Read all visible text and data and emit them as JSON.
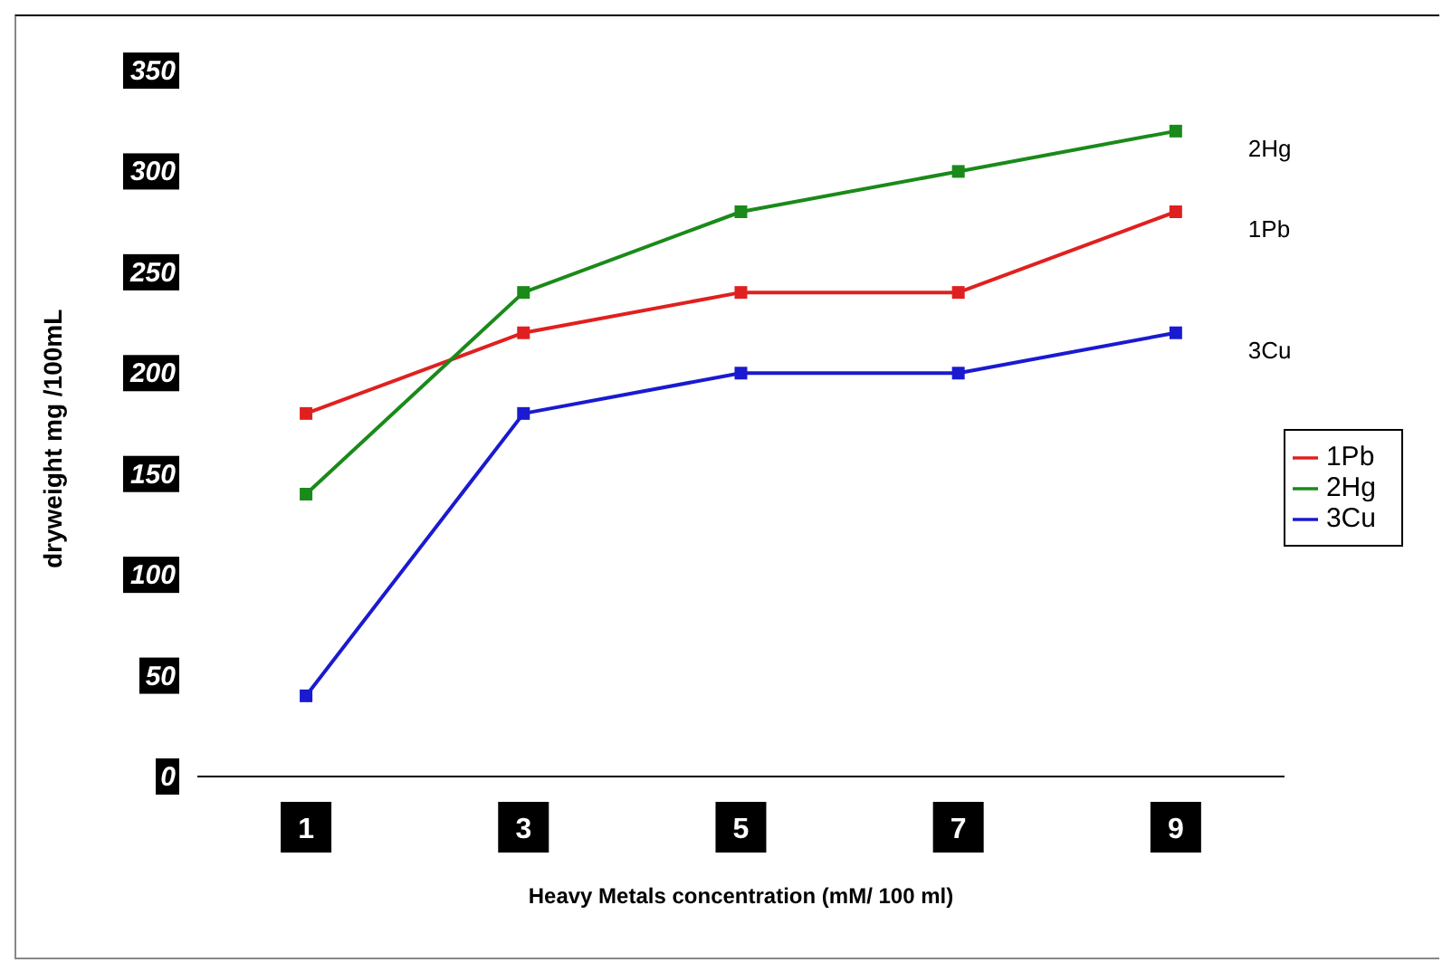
{
  "chart_data": {
    "type": "line",
    "xlabel": "Heavy Metals concentration (mM/ 100 ml)",
    "ylabel": "dryweight mg /100mL",
    "categories": [
      "1",
      "3",
      "5",
      "7",
      "9"
    ],
    "series": [
      {
        "name": "1Pb",
        "color": "#e02020",
        "values": [
          180,
          220,
          240,
          240,
          280
        ]
      },
      {
        "name": "2Hg",
        "color": "#1a8a1a",
        "values": [
          140,
          240,
          280,
          300,
          320
        ]
      },
      {
        "name": "3Cu",
        "color": "#1a1ad0",
        "values": [
          40,
          180,
          200,
          200,
          220
        ]
      }
    ],
    "ylim": [
      0,
      350
    ],
    "yticks": [
      0,
      50,
      100,
      150,
      200,
      250,
      300,
      350
    ],
    "grid": false,
    "legend": "right",
    "marker": "square",
    "line_style": "solid"
  }
}
